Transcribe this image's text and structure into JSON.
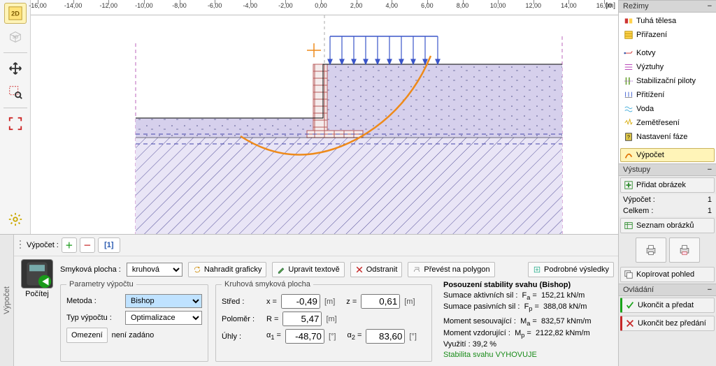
{
  "ruler_unit": "[m]",
  "ruler_ticks": [
    -16,
    -14,
    -12,
    -10,
    -8,
    -6,
    -4,
    -2,
    0,
    2,
    4,
    6,
    8,
    10,
    12,
    14,
    16
  ],
  "right": {
    "modes_title": "Režimy",
    "modes": [
      {
        "label": "Tuhá tělesa"
      },
      {
        "label": "Přiřazení"
      },
      {
        "label": "Kotvy"
      },
      {
        "label": "Výztuhy"
      },
      {
        "label": "Stabilizační piloty"
      },
      {
        "label": "Přitížení"
      },
      {
        "label": "Voda"
      },
      {
        "label": "Zemětřesení"
      },
      {
        "label": "Nastavení fáze"
      }
    ],
    "compute": "Výpočet",
    "outputs_title": "Výstupy",
    "add_image": "Přidat obrázek",
    "compute_kv": {
      "k": "Výpočet :",
      "v": "1"
    },
    "total_kv": {
      "k": "Celkem :",
      "v": "1"
    },
    "list_images": "Seznam obrázků",
    "copy_view": "Kopírovat pohled",
    "ctrl_title": "Ovládání",
    "finish_hand": "Ukončit a předat",
    "finish_nohand": "Ukončit bez předání"
  },
  "bottom": {
    "tab": "Výpočet",
    "label": "Výpočet :",
    "bracket": "[1]",
    "compute": "Počítej",
    "shear_label": "Smyková plocha :",
    "shear_sel": "kruhová",
    "btn_replace": "Nahradit graficky",
    "btn_edit": "Upravit textově",
    "btn_delete": "Odstranit",
    "btn_poly": "Převést na polygon",
    "btn_detail": "Podrobné výsledky",
    "params_legend": "Parametry výpočtu",
    "method_lbl": "Metoda :",
    "method_sel": "Bishop",
    "type_lbl": "Typ výpočtu :",
    "type_sel": "Optimalizace",
    "limit_btn": "Omezení",
    "limit_txt": "není zadáno",
    "circ_legend": "Kruhová smyková plocha",
    "center_lbl": "Střed :",
    "radius_lbl": "Poloměr :",
    "angles_lbl": "Úhly :",
    "x": "-0,49",
    "z": "0,61",
    "R": "5,47",
    "a1": "-48,70",
    "a2": "83,60",
    "res_title": "Posouzení stability svahu (Bishop)",
    "res_l1a": "Sumace aktivních sil :",
    "res_l1b": "F",
    "res_l1sub": "a",
    "res_l1c": " =",
    "res_l1v": "152,21",
    "res_l1u": "kN/m",
    "res_l2a": "Sumace pasivních sil :",
    "res_l2b": "F",
    "res_l2sub": "p",
    "res_l2c": " =",
    "res_l2v": "388,08",
    "res_l2u": "kN/m",
    "res_l3a": "Moment sesouvající :",
    "res_l3b": "M",
    "res_l3sub": "a",
    "res_l3c": " =",
    "res_l3v": "832,57",
    "res_l3u": "kNm/m",
    "res_l4a": "Moment vzdorující :",
    "res_l4b": "M",
    "res_l4sub": "p",
    "res_l4c": " =",
    "res_l4v": "2122,82",
    "res_l4u": "kNm/m",
    "res_l5": "Využití : 39,2 %",
    "res_pass": "Stabilita svahu VYHOVUJE"
  },
  "chart": {
    "bg": "#ffffff",
    "soil1": "#d6d0ec",
    "soil2": "#e9e5f6",
    "hatch": "#55509a",
    "wall": "#b85a5a",
    "load": "#3a55c9",
    "circle": "#ee8a1a",
    "grid": "#d8d8d8"
  }
}
